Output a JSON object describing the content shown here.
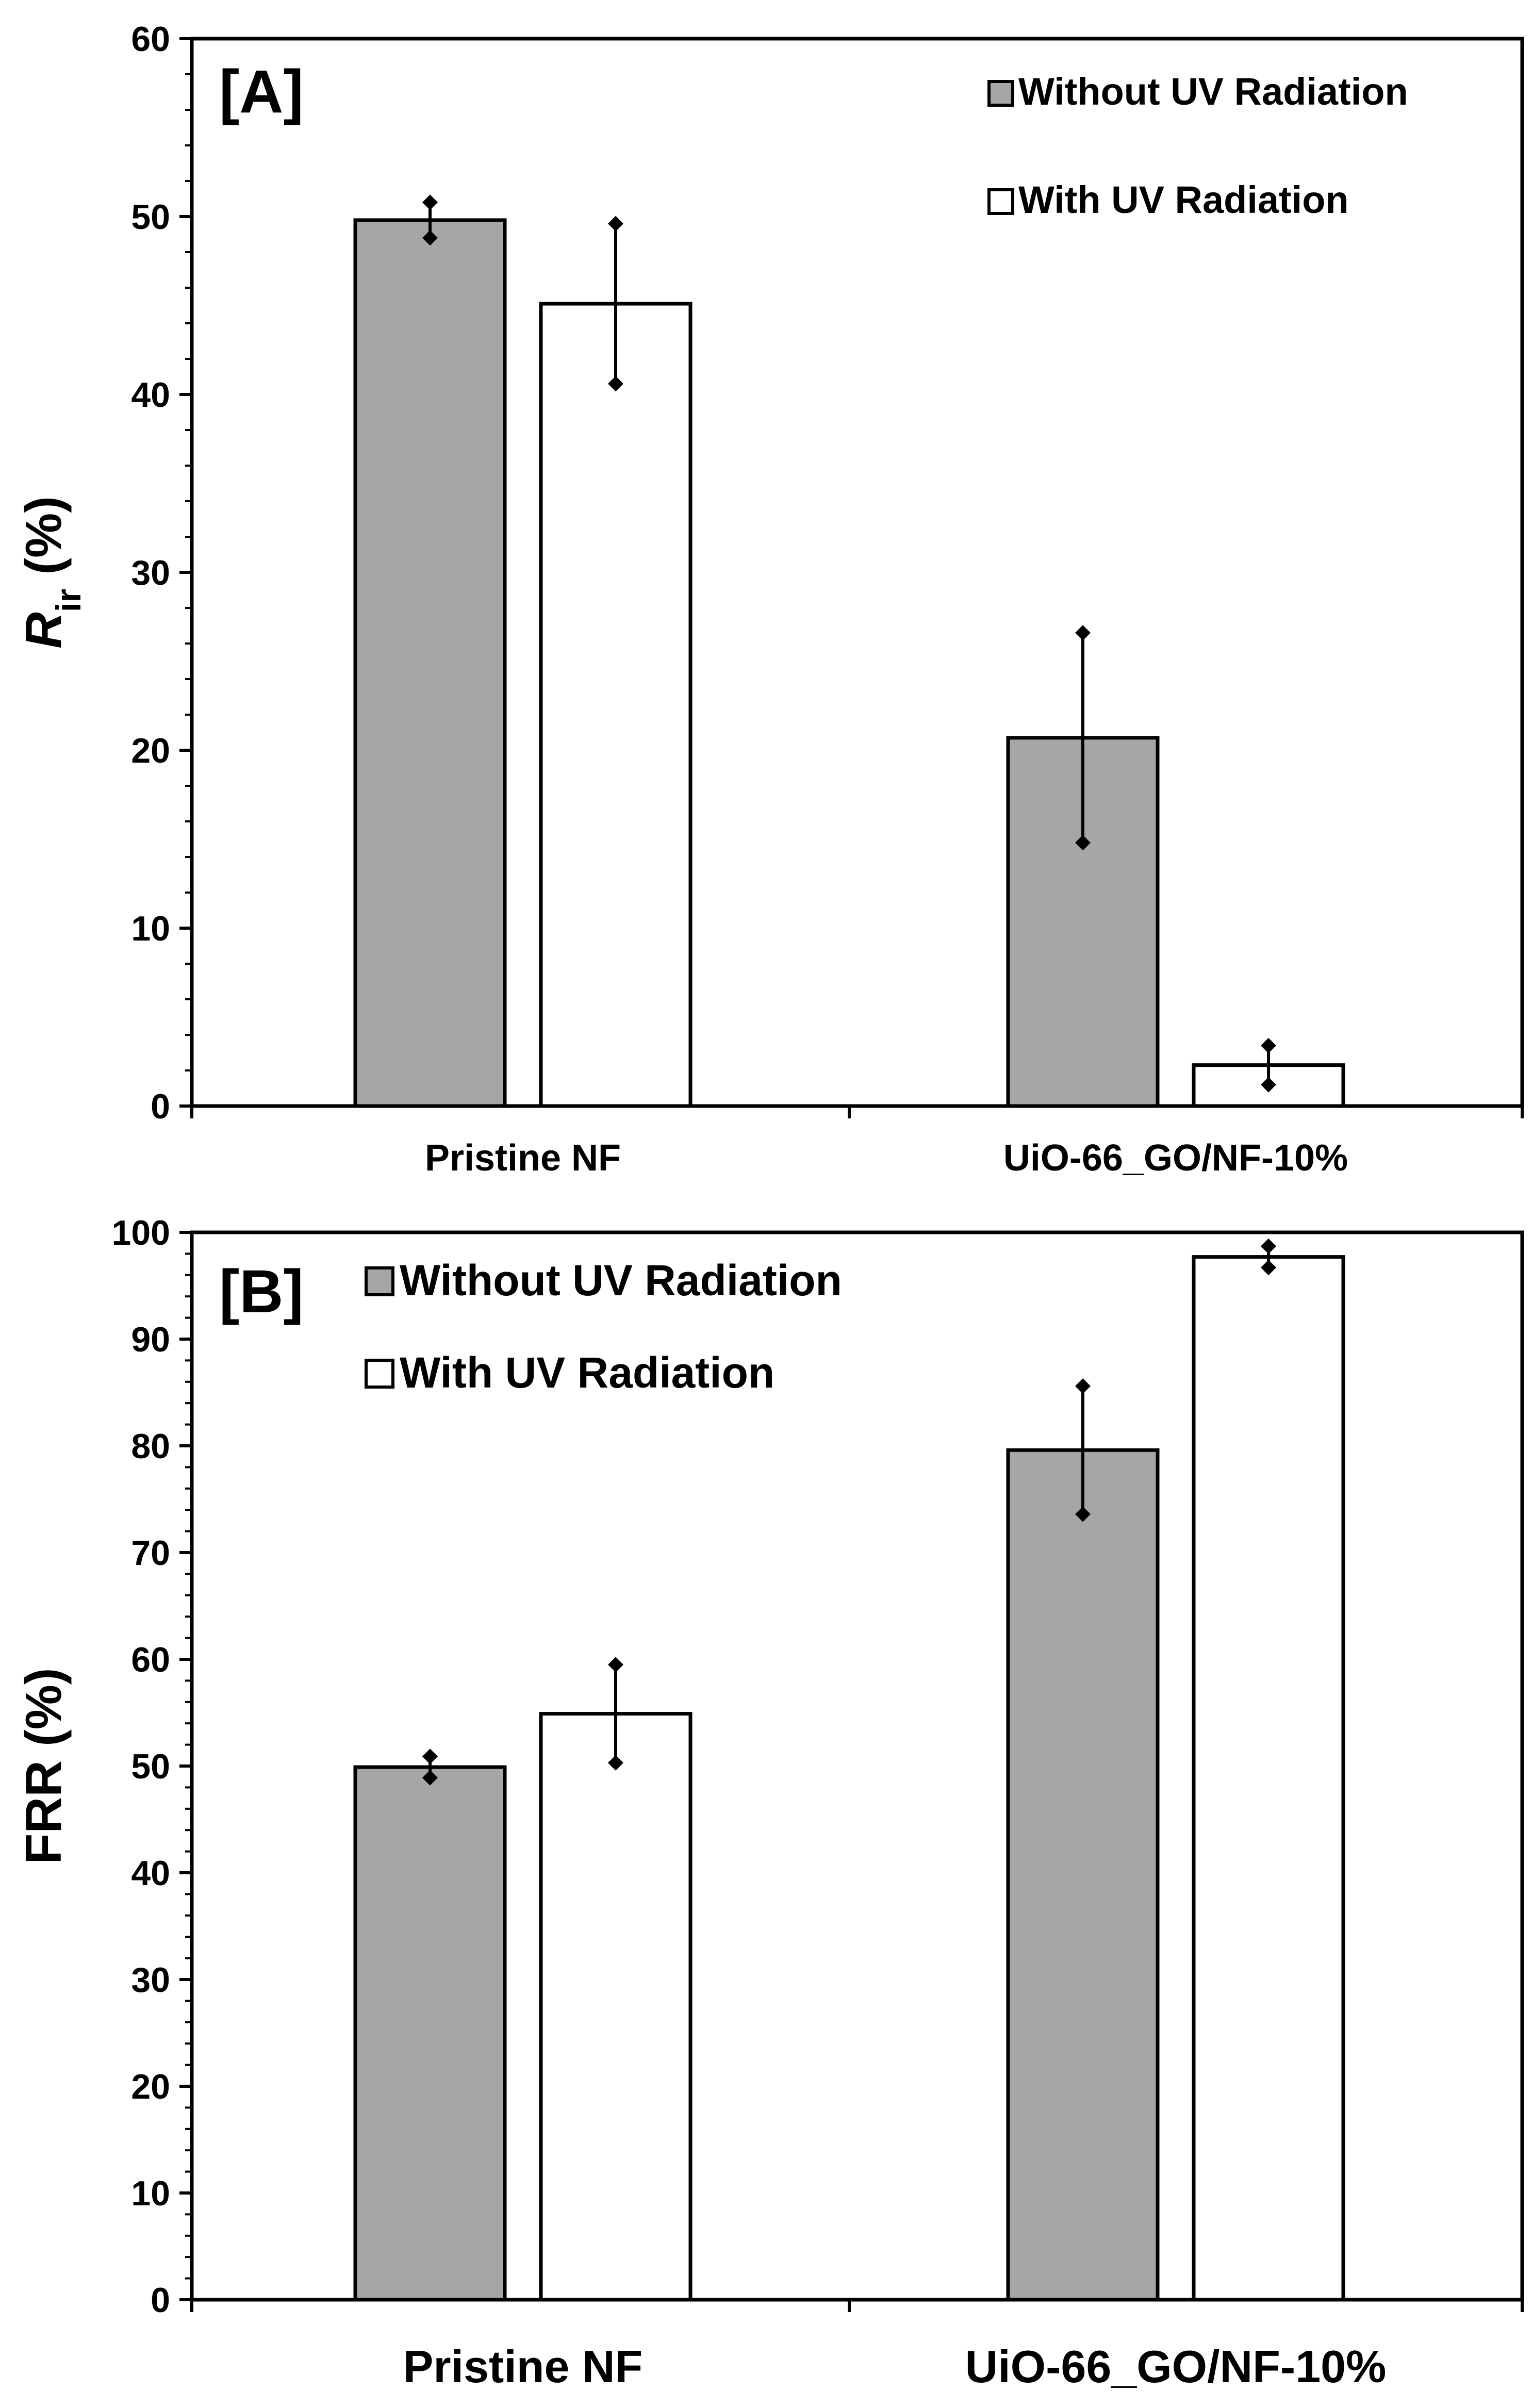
{
  "chart_data": [
    {
      "type": "bar",
      "panel_label": "[A]",
      "categories": [
        "Pristine NF",
        "UiO-66_GO/NF-10%"
      ],
      "series": [
        {
          "name": "Without UV Radiation",
          "color": "#a6a6a6",
          "values": [
            49.8,
            20.7
          ],
          "errors": [
            1.0,
            5.9
          ]
        },
        {
          "name": "With UV Radiation",
          "color": "#ffffff",
          "values": [
            45.1,
            2.3
          ],
          "errors": [
            4.5,
            1.1
          ]
        }
      ],
      "ylabel_main": "R",
      "ylabel_sub": "ir",
      "ylabel_unit": "(%)",
      "ylim": [
        0,
        60
      ],
      "yticks": [
        "0",
        "10",
        "20",
        "30",
        "40",
        "50",
        "60"
      ],
      "legend_position": "top-right"
    },
    {
      "type": "bar",
      "panel_label": "[B]",
      "categories": [
        "Pristine NF",
        "UiO-66_GO/NF-10%"
      ],
      "series": [
        {
          "name": "Without UV Radiation",
          "color": "#a6a6a6",
          "values": [
            49.9,
            79.6
          ],
          "errors": [
            1.0,
            6.0
          ]
        },
        {
          "name": "With UV Radiation",
          "color": "#ffffff",
          "values": [
            54.9,
            97.7
          ],
          "errors": [
            4.6,
            1.0
          ]
        }
      ],
      "ylabel": "FRR (%)",
      "ylim": [
        0,
        100
      ],
      "yticks": [
        "0",
        "10",
        "20",
        "30",
        "40",
        "50",
        "60",
        "70",
        "80",
        "90",
        "100"
      ],
      "legend_position": "top-left"
    }
  ]
}
